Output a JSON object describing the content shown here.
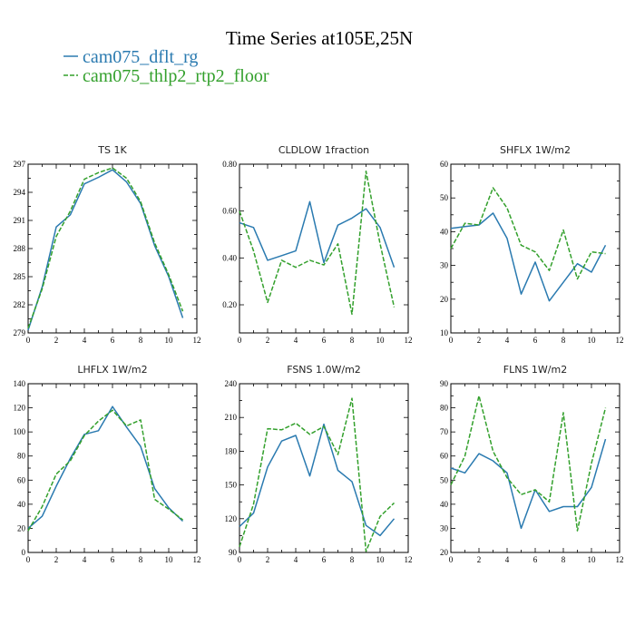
{
  "title": "Time Series at105E,25N",
  "colors": {
    "series1": "#2a7ab0",
    "series2": "#33a02c"
  },
  "legend": [
    {
      "name": "cam075_dflt_rg",
      "color": "#2a7ab0",
      "dash": "solid"
    },
    {
      "name": "cam075_thlp2_rtp2_floor",
      "color": "#33a02c",
      "dash": "dashed"
    }
  ],
  "chart_data": [
    {
      "type": "line",
      "title": "TS   1K",
      "x": [
        0,
        1,
        2,
        3,
        4,
        5,
        6,
        7,
        8,
        9,
        10,
        11
      ],
      "xlim": [
        0,
        12
      ],
      "xticks": [
        0,
        2,
        4,
        6,
        8,
        10,
        12
      ],
      "ylim": [
        279,
        297
      ],
      "yticks": [
        279,
        282,
        285,
        288,
        291,
        294,
        297
      ],
      "ytick_labels": [
        "279",
        "282",
        "285",
        "288",
        "291",
        "294",
        "297"
      ],
      "series": [
        {
          "name": "cam075_dflt_rg",
          "values": [
            279.3,
            283.9,
            290.3,
            291.6,
            294.9,
            295.6,
            296.4,
            295.1,
            292.8,
            288.3,
            285.0,
            280.6
          ]
        },
        {
          "name": "cam075_thlp2_rtp2_floor",
          "values": [
            279.5,
            283.7,
            289.3,
            292.0,
            295.4,
            296.1,
            296.6,
            295.5,
            293.0,
            288.6,
            285.2,
            281.3
          ]
        }
      ]
    },
    {
      "type": "line",
      "title": "CLDLOW   1fraction",
      "x": [
        0,
        1,
        2,
        3,
        4,
        5,
        6,
        7,
        8,
        9,
        10,
        11
      ],
      "xlim": [
        0,
        12
      ],
      "xticks": [
        0,
        2,
        4,
        6,
        8,
        10,
        12
      ],
      "ylim": [
        0.08,
        0.8
      ],
      "yticks": [
        0.2,
        0.4,
        0.6,
        0.8
      ],
      "ytick_labels": [
        "0.20",
        "0.40",
        "0.60",
        "0.80"
      ],
      "series": [
        {
          "name": "cam075_dflt_rg",
          "values": [
            0.55,
            0.53,
            0.39,
            0.41,
            0.43,
            0.64,
            0.38,
            0.54,
            0.57,
            0.61,
            0.53,
            0.36
          ]
        },
        {
          "name": "cam075_thlp2_rtp2_floor",
          "values": [
            0.6,
            0.43,
            0.21,
            0.39,
            0.36,
            0.39,
            0.37,
            0.46,
            0.16,
            0.77,
            0.46,
            0.19
          ]
        }
      ]
    },
    {
      "type": "line",
      "title": "SHFLX   1W/m2",
      "x": [
        0,
        1,
        2,
        3,
        4,
        5,
        6,
        7,
        8,
        9,
        10,
        11
      ],
      "xlim": [
        0,
        12
      ],
      "xticks": [
        0,
        2,
        4,
        6,
        8,
        10,
        12
      ],
      "ylim": [
        10,
        60
      ],
      "yticks": [
        10,
        20,
        30,
        40,
        50,
        60
      ],
      "ytick_labels": [
        "10",
        "20",
        "30",
        "40",
        "50",
        "60"
      ],
      "series": [
        {
          "name": "cam075_dflt_rg",
          "values": [
            41,
            41.5,
            42,
            45.5,
            38,
            21.5,
            31,
            19.5,
            25,
            30.5,
            28,
            36
          ]
        },
        {
          "name": "cam075_thlp2_rtp2_floor",
          "values": [
            35,
            42.5,
            42,
            53,
            47,
            36,
            34,
            28.5,
            40.5,
            26,
            34,
            33.5
          ]
        }
      ]
    },
    {
      "type": "line",
      "title": "LHFLX   1W/m2",
      "x": [
        0,
        1,
        2,
        3,
        4,
        5,
        6,
        7,
        8,
        9,
        10,
        11
      ],
      "xlim": [
        0,
        12
      ],
      "xticks": [
        0,
        2,
        4,
        6,
        8,
        10,
        12
      ],
      "ylim": [
        0,
        140
      ],
      "yticks": [
        0,
        20,
        40,
        60,
        80,
        100,
        120,
        140
      ],
      "ytick_labels": [
        "0",
        "20",
        "40",
        "60",
        "80",
        "100",
        "120",
        "140"
      ],
      "series": [
        {
          "name": "cam075_dflt_rg",
          "values": [
            20,
            30,
            55,
            78,
            98,
            101,
            121,
            104,
            88,
            53,
            37,
            26
          ]
        },
        {
          "name": "cam075_thlp2_rtp2_floor",
          "values": [
            18,
            38,
            65,
            76,
            97,
            109,
            118,
            105,
            110,
            44,
            36,
            27
          ]
        }
      ]
    },
    {
      "type": "line",
      "title": "FSNS   1.0W/m2",
      "x": [
        0,
        1,
        2,
        3,
        4,
        5,
        6,
        7,
        8,
        9,
        10,
        11
      ],
      "xlim": [
        0,
        12
      ],
      "xticks": [
        0,
        2,
        4,
        6,
        8,
        10,
        12
      ],
      "ylim": [
        90,
        240
      ],
      "yticks": [
        90,
        120,
        150,
        180,
        210,
        240
      ],
      "ytick_labels": [
        "90",
        "120",
        "150",
        "180",
        "210",
        "240"
      ],
      "series": [
        {
          "name": "cam075_dflt_rg",
          "values": [
            113,
            125,
            166,
            189,
            194,
            158,
            204,
            163,
            153,
            114,
            105,
            120
          ]
        },
        {
          "name": "cam075_thlp2_rtp2_floor",
          "values": [
            95,
            133,
            200,
            199,
            205,
            195,
            202,
            177,
            227,
            91,
            122,
            134
          ]
        }
      ]
    },
    {
      "type": "line",
      "title": "FLNS   1W/m2",
      "x": [
        0,
        1,
        2,
        3,
        4,
        5,
        6,
        7,
        8,
        9,
        10,
        11
      ],
      "xlim": [
        0,
        12
      ],
      "xticks": [
        0,
        2,
        4,
        6,
        8,
        10,
        12
      ],
      "ylim": [
        20,
        90
      ],
      "yticks": [
        20,
        30,
        40,
        50,
        60,
        70,
        80,
        90
      ],
      "ytick_labels": [
        "20",
        "30",
        "40",
        "50",
        "60",
        "70",
        "80",
        "90"
      ],
      "series": [
        {
          "name": "cam075_dflt_rg",
          "values": [
            55,
            53,
            61,
            58,
            53,
            30,
            46,
            37,
            39,
            39,
            47,
            67
          ]
        },
        {
          "name": "cam075_thlp2_rtp2_floor",
          "values": [
            48,
            60,
            85,
            62,
            51,
            44,
            46,
            41,
            78,
            29,
            57,
            80
          ]
        }
      ]
    }
  ]
}
